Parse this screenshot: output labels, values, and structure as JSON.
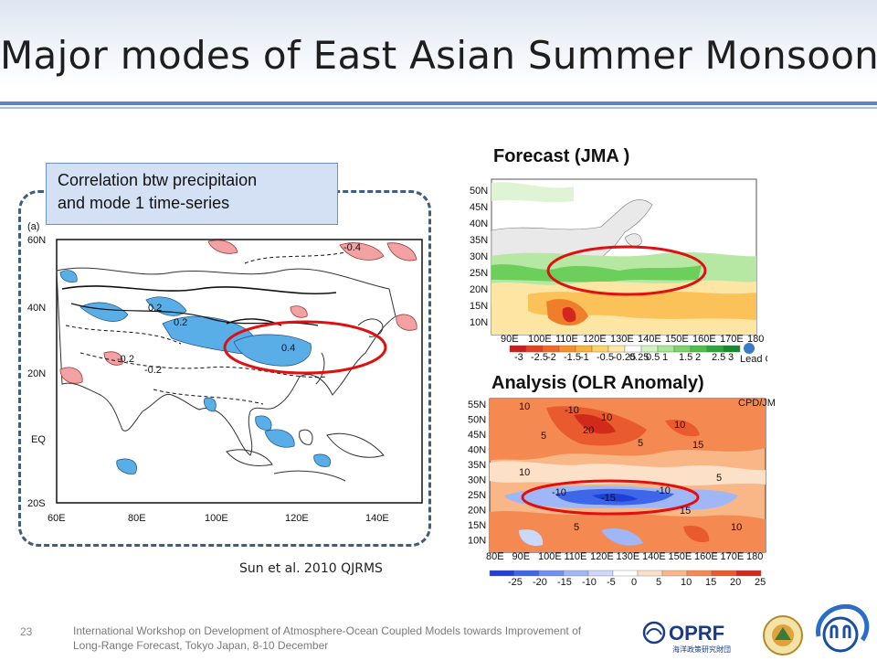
{
  "slide": {
    "title": "Major modes of East Asian Summer Monsoon",
    "page_number": "23",
    "footer_line1": "International Workshop on Development of Atmosphere-Ocean Coupled Models towards Improvement of",
    "footer_line2": "Long-Range Forecast, Tokyo Japan, 8-10 December",
    "credit": "Sun et al. 2010   QJRMS"
  },
  "callout": {
    "line1": "Correlation btw precipitaion",
    "line2": "and mode 1 time-series"
  },
  "left_map": {
    "panel_label": "(a)",
    "lat_labels": [
      "60N",
      "40N",
      "20N",
      "EQ",
      "20S"
    ],
    "lon_labels": [
      "60E",
      "80E",
      "100E",
      "120E",
      "140E"
    ],
    "contour_labels": [
      "-0.4",
      "0.2",
      "0.2",
      "-0.2",
      "-0.2",
      "0.4"
    ]
  },
  "forecast": {
    "title": "Forecast (JMA )",
    "lat_labels": [
      "50N",
      "45N",
      "40N",
      "35N",
      "30N",
      "25N",
      "20N",
      "15N",
      "10N"
    ],
    "lon_labels": [
      "90E",
      "100E",
      "110E",
      "120E",
      "130E",
      "140E",
      "150E",
      "160E",
      "170E",
      "180"
    ],
    "colorbar_labels": [
      "-3",
      "-2.5",
      "-2",
      "-1.5",
      "-1",
      "-0.5",
      "-0.25",
      "0.25",
      "0.5",
      "1",
      "1.5",
      "2",
      "2.5",
      "3"
    ],
    "colorbar_colors": [
      "#c81e1e",
      "#e3421f",
      "#f06a25",
      "#f78f2c",
      "#fab23f",
      "#fcd36a",
      "#fde9a6",
      "#ffffff",
      "#d2f2c2",
      "#a9e596",
      "#7bd36a",
      "#4fbf4a",
      "#2ea43a",
      "#138a2c"
    ],
    "logo_text": "Lead Centre"
  },
  "analysis": {
    "title": "Analysis (OLR Anomaly)",
    "lat_labels": [
      "55N",
      "50N",
      "45N",
      "40N",
      "35N",
      "30N",
      "25N",
      "20N",
      "15N",
      "10N"
    ],
    "lon_labels": [
      "80E",
      "90E",
      "100E",
      "110E",
      "120E",
      "130E",
      "140E",
      "150E",
      "160E",
      "170E",
      "180"
    ],
    "colorbar_labels": [
      "-25",
      "-20",
      "-15",
      "-10",
      "-5",
      "0",
      "5",
      "10",
      "15",
      "20",
      "25"
    ],
    "colorbar_colors": [
      "#1f3fd6",
      "#3d66e8",
      "#6f90f2",
      "#9fb7f7",
      "#cad8fb",
      "#ffffff",
      "#fce0c8",
      "#f9b788",
      "#f48a52",
      "#e95a2f",
      "#d12a1b"
    ],
    "source": "CPD/JMA",
    "contour_labels": [
      "10",
      "-10",
      "10",
      "5",
      "10",
      "20",
      "15",
      "5",
      "10",
      "-10",
      "-15",
      "-10",
      "5",
      "15",
      "5",
      "10"
    ]
  },
  "logos": {
    "oprf": "OPRF",
    "oprf_sub": "海洋政策研究財団"
  },
  "colors": {
    "accent": "#5b83c5",
    "ellipse": "#e01010",
    "callout_bg": "#d4e1f4"
  }
}
